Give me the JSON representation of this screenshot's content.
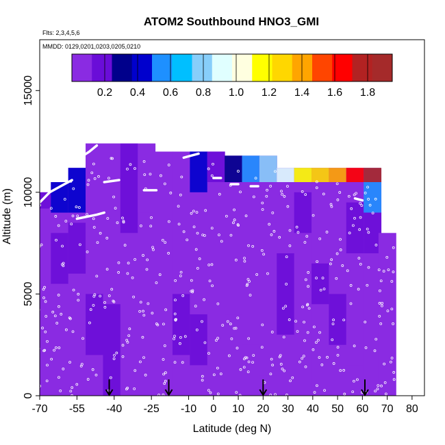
{
  "chart_data": {
    "type": "heatmap",
    "title": "ATOM2 Southbound HNO3_GMI",
    "subtitle_flights": "Flts: 2,3,4,5,6",
    "subtitle_dates": "MMDD: 0129,0201,0203,0205,0210",
    "xlabel": "Latitude (deg N)",
    "ylabel": "Altitude (m)",
    "xlim": [
      -70,
      85
    ],
    "ylim": [
      0,
      17500
    ],
    "x_ticks": [
      -70,
      -55,
      -40,
      -25,
      -10,
      0,
      10,
      20,
      30,
      40,
      50,
      60,
      70,
      80
    ],
    "y_ticks": [
      0,
      5000,
      10000,
      15000
    ],
    "colorbar": {
      "min": 0.0,
      "max": 1.95,
      "ticks": [
        0.2,
        0.4,
        0.6,
        0.8,
        1.0,
        1.2,
        1.4,
        1.6,
        1.8
      ],
      "colors": [
        "#8a2be2",
        "#6a0dd8",
        "#00008b",
        "#0000cd",
        "#1e90ff",
        "#00bfff",
        "#87cefa",
        "#e0ffff",
        "#ffffe0",
        "#ffff00",
        "#ffd700",
        "#ffa500",
        "#ff4500",
        "#ff0000",
        "#b22222",
        "#a52a2a"
      ]
    },
    "arrow_latitudes": [
      -42,
      -18,
      20,
      61
    ],
    "columns": [
      {
        "lat": -68,
        "top": 10000,
        "lows": [
          {
            "y0": 9200,
            "y1": 10000,
            "v": 0.15
          }
        ]
      },
      {
        "lat": -62,
        "top": 10500,
        "lows": [
          {
            "y0": 9000,
            "y1": 10500,
            "v": 0.45
          },
          {
            "y0": 5500,
            "y1": 8000,
            "v": 0.15
          }
        ]
      },
      {
        "lat": -55,
        "top": 11200,
        "lows": [
          {
            "y0": 9000,
            "y1": 11200,
            "v": 0.4
          },
          {
            "y0": 6000,
            "y1": 8500,
            "v": 0.15
          }
        ]
      },
      {
        "lat": -48,
        "top": 12400,
        "lows": [
          {
            "y0": 7000,
            "y1": 12400,
            "v": 0.12
          },
          {
            "y0": 2000,
            "y1": 5000,
            "v": 0.15
          }
        ]
      },
      {
        "lat": -41,
        "top": 12400,
        "lows": [
          {
            "y0": 6000,
            "y1": 12400,
            "v": 0.1
          },
          {
            "y0": 0,
            "y1": 4500,
            "v": 0.16
          }
        ]
      },
      {
        "lat": -34,
        "top": 12400,
        "lows": [
          {
            "y0": 8000,
            "y1": 12400,
            "v": 0.14
          }
        ]
      },
      {
        "lat": -27,
        "top": 12400,
        "lows": [
          {
            "y0": 9000,
            "y1": 11000,
            "v": 0.12
          }
        ]
      },
      {
        "lat": -20,
        "top": 12000,
        "lows": []
      },
      {
        "lat": -13,
        "top": 12000,
        "lows": [
          {
            "y0": 2000,
            "y1": 5000,
            "v": 0.16
          }
        ]
      },
      {
        "lat": -6,
        "top": 12000,
        "lows": [
          {
            "y0": 10000,
            "y1": 12000,
            "v": 0.45
          },
          {
            "y0": 1500,
            "y1": 4000,
            "v": 0.14
          }
        ]
      },
      {
        "lat": 1,
        "top": 12000,
        "lows": [
          {
            "y0": 10500,
            "y1": 12000,
            "v": 0.2
          }
        ]
      },
      {
        "lat": 8,
        "top": 11800,
        "lows": [
          {
            "y0": 10500,
            "y1": 11800,
            "v": 0.25
          },
          {
            "y0": 4000,
            "y1": 7000,
            "v": 0.12
          }
        ]
      },
      {
        "lat": 15,
        "top": 11800,
        "lows": [
          {
            "y0": 10500,
            "y1": 11800,
            "v": 0.6
          },
          {
            "y0": 2500,
            "y1": 8000,
            "v": 0.1
          }
        ]
      },
      {
        "lat": 22,
        "top": 11800,
        "lows": [
          {
            "y0": 10500,
            "y1": 11800,
            "v": 0.75
          },
          {
            "y0": 1000,
            "y1": 8500,
            "v": 0.1
          }
        ]
      },
      {
        "lat": 29,
        "top": 11200,
        "lows": [
          {
            "y0": 10500,
            "y1": 11200,
            "v": 0.9
          },
          {
            "y0": 3000,
            "y1": 7000,
            "v": 0.15
          }
        ]
      },
      {
        "lat": 36,
        "top": 11200,
        "lows": [
          {
            "y0": 10500,
            "y1": 11200,
            "v": 1.15
          },
          {
            "y0": 8000,
            "y1": 10000,
            "v": 0.15
          }
        ]
      },
      {
        "lat": 43,
        "top": 11200,
        "lows": [
          {
            "y0": 10500,
            "y1": 11200,
            "v": 1.3
          },
          {
            "y0": 4500,
            "y1": 6500,
            "v": 0.14
          }
        ]
      },
      {
        "lat": 50,
        "top": 11200,
        "lows": [
          {
            "y0": 10500,
            "y1": 11200,
            "v": 1.45
          },
          {
            "y0": 2500,
            "y1": 5000,
            "v": 0.15
          }
        ]
      },
      {
        "lat": 57,
        "top": 11200,
        "lows": [
          {
            "y0": 10500,
            "y1": 11200,
            "v": 1.7
          },
          {
            "y0": 1500,
            "y1": 4000,
            "v": 0.12
          },
          {
            "y0": 7000,
            "y1": 9500,
            "v": 0.15
          }
        ]
      },
      {
        "lat": 64,
        "top": 11200,
        "lows": [
          {
            "y0": 10500,
            "y1": 11200,
            "v": 1.85
          },
          {
            "y0": 9000,
            "y1": 10500,
            "v": 0.5
          },
          {
            "y0": 7000,
            "y1": 9000,
            "v": 0.15
          }
        ]
      },
      {
        "lat": 70,
        "top": 8000,
        "lows": []
      }
    ],
    "flight_tracks": [
      {
        "points": [
          [
            -70,
            9500
          ],
          [
            -66,
            10000
          ],
          [
            -60,
            10400
          ],
          [
            -57,
            10600
          ]
        ]
      },
      {
        "points": [
          [
            -55,
            11600
          ],
          [
            -50,
            12000
          ],
          [
            -47,
            12300
          ]
        ]
      },
      {
        "points": [
          [
            -55,
            8700
          ],
          [
            -51,
            8800
          ],
          [
            -47,
            8900
          ],
          [
            -44,
            9000
          ]
        ]
      },
      {
        "points": [
          [
            -44,
            10500
          ],
          [
            -38,
            10600
          ]
        ]
      },
      {
        "points": [
          [
            -28,
            10100
          ],
          [
            -23,
            10100
          ]
        ]
      },
      {
        "points": [
          [
            -12,
            11700
          ],
          [
            -9,
            11800
          ],
          [
            -6,
            11900
          ]
        ]
      },
      {
        "points": [
          [
            0,
            10700
          ],
          [
            3,
            10700
          ]
        ]
      },
      {
        "points": [
          [
            7,
            10400
          ],
          [
            10,
            10400
          ]
        ]
      },
      {
        "points": [
          [
            15,
            10300
          ],
          [
            18,
            10300
          ]
        ]
      },
      {
        "points": [
          [
            57,
            9700
          ],
          [
            60,
            9600
          ]
        ]
      },
      {
        "points": [
          [
            62,
            11400
          ],
          [
            70,
            11200
          ]
        ]
      }
    ]
  }
}
